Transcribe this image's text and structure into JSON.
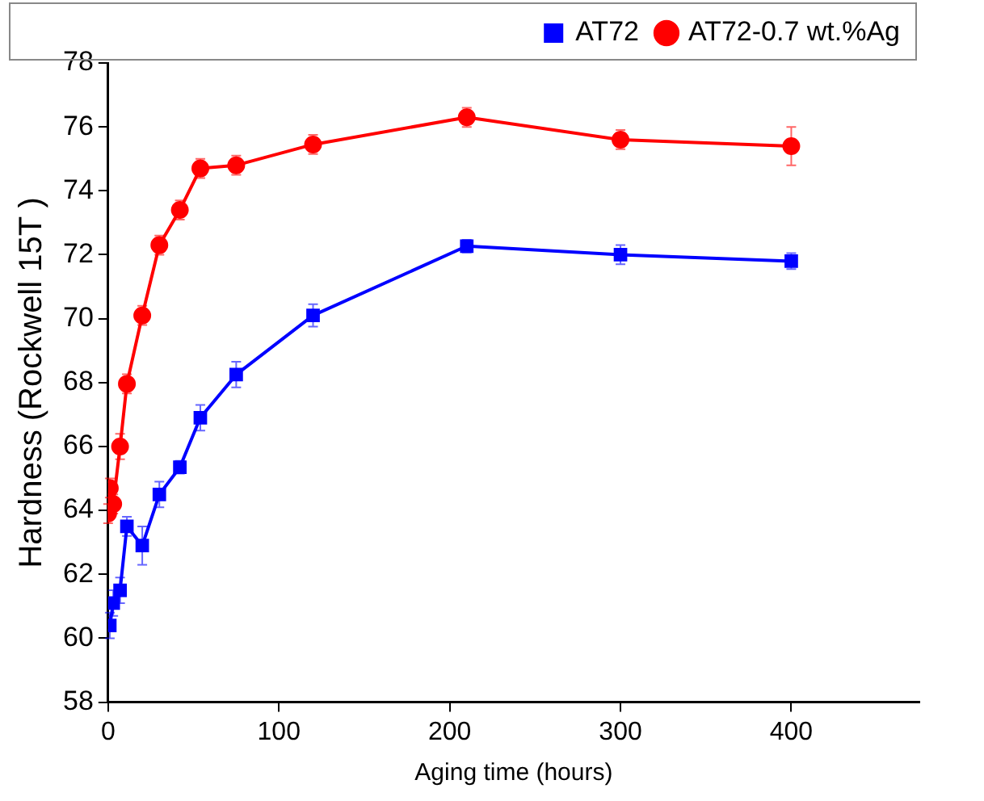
{
  "chart_data": {
    "type": "line",
    "xlabel": "Aging time (hours)",
    "ylabel": "Hardness (Rockwell 15T )",
    "xlim": [
      0,
      475
    ],
    "xticks": [
      0,
      100,
      200,
      300,
      400
    ],
    "ylim": [
      58,
      78
    ],
    "yticks": [
      58,
      60,
      62,
      64,
      66,
      68,
      70,
      72,
      74,
      76,
      78
    ],
    "legend": "top right",
    "grid": false,
    "series": [
      {
        "name": "AT72",
        "color": "#0000ff",
        "marker": "square",
        "x": [
          1,
          3,
          7,
          11,
          20,
          30,
          42,
          54,
          75,
          120,
          210,
          300,
          400
        ],
        "values": [
          60.4,
          61.1,
          61.5,
          63.5,
          62.9,
          64.5,
          65.35,
          66.9,
          68.25,
          70.1,
          72.27,
          72.0,
          71.8
        ],
        "errors": [
          0.4,
          0.4,
          0.4,
          0.3,
          0.6,
          0.4,
          0.2,
          0.4,
          0.4,
          0.35,
          0.2,
          0.3,
          0.25
        ]
      },
      {
        "name": "AT72-0.7 wt.%Ag",
        "color": "#ff0000",
        "marker": "circle",
        "x": [
          0,
          1,
          3,
          7,
          11,
          20,
          30,
          42,
          54,
          75,
          120,
          210,
          300,
          400
        ],
        "values": [
          63.9,
          64.7,
          64.2,
          66.0,
          67.96,
          70.1,
          72.3,
          73.4,
          74.7,
          74.8,
          75.45,
          76.3,
          75.6,
          75.4
        ],
        "errors": [
          0.3,
          0.3,
          0.3,
          0.4,
          0.3,
          0.3,
          0.3,
          0.3,
          0.3,
          0.3,
          0.3,
          0.3,
          0.3,
          0.6
        ]
      }
    ]
  }
}
